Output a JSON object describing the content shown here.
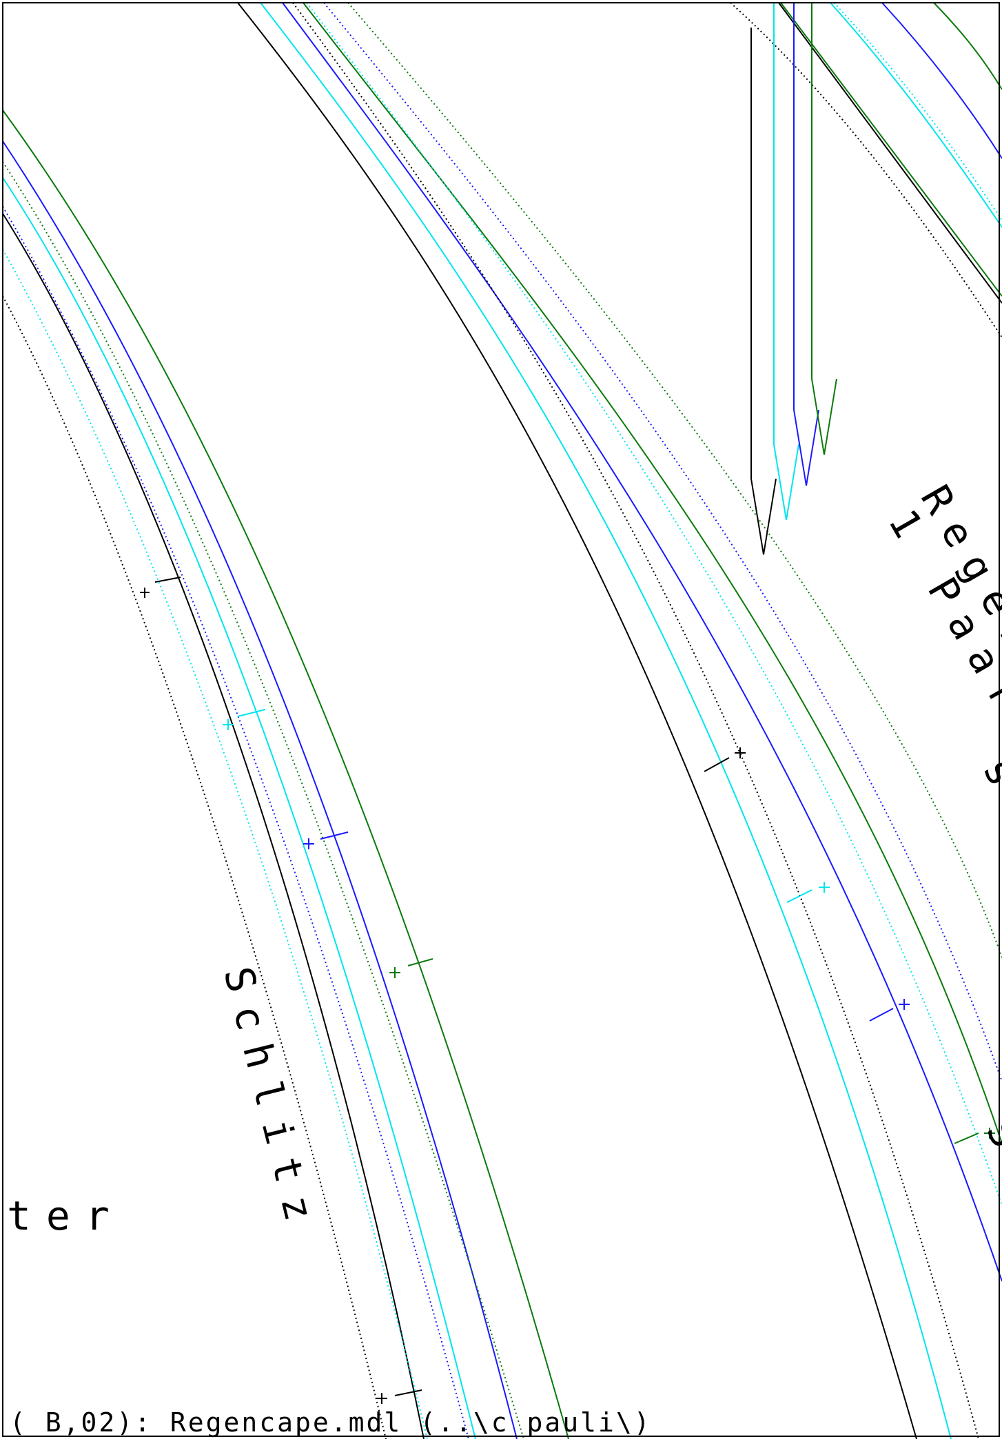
{
  "colors": {
    "background": "#ffffff",
    "black": "#000000",
    "blue": "#1a1aff",
    "cyan": "#00e5ee",
    "green": "#0a7a0a"
  },
  "labels": {
    "schlitz": "Schlitz",
    "ter": "ter",
    "regen": "Regen",
    "paar": "1 Paar",
    "sa": "sa",
    "b_fragment": "S"
  },
  "footer": {
    "text": "( B,02): Regencape.mdl (..\\c pauli\\)"
  }
}
